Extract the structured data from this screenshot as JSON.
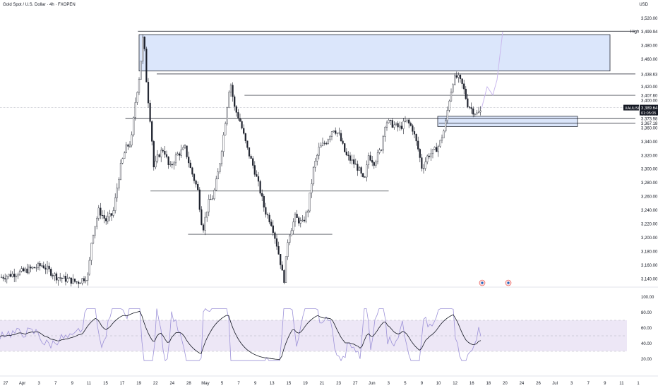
{
  "header": {
    "title": "Gold Spot / U.S. Dollar · 4h · FXOPEN",
    "currency": "USD"
  },
  "colors": {
    "up": "#26a69a",
    "candle": "#1e222d",
    "zone_fill": "#dbe6fb",
    "zone_stroke": "#1e222d",
    "projection": "#c9b8ee",
    "rsi_line": "#9d92d8",
    "rsi_ma": "#131722",
    "rsi_band": "#ede7f6",
    "rsi_fill": "#8bc78f"
  },
  "chart_data": {
    "type": "line",
    "price_axis": {
      "ticks": [
        "3,520.00",
        "3,500.00",
        "3,480.00",
        "3,460.00",
        "3,440.00",
        "3,420.00",
        "3,400.00",
        "3,380.00",
        "3,360.00",
        "3,340.00",
        "3,320.00",
        "3,300.00",
        "3,280.00",
        "3,260.00",
        "3,240.00",
        "3,220.00",
        "3,200.00",
        "3,180.00",
        "3,160.00",
        "3,140.00"
      ],
      "range": [
        3130,
        3528
      ]
    },
    "price_labels": {
      "high_text": "High",
      "high_value": "3,499.94",
      "level1": "3,438.63",
      "level2": "3,407.60",
      "symbol": "XAUUSD",
      "last": "3,389.64",
      "countdown": "01:05:05",
      "level3": "3,373.98",
      "level4": "3,367.18"
    },
    "rsi_axis": {
      "ticks": [
        "100.00",
        "80.00",
        "60.00",
        "40.00",
        "20.00"
      ],
      "range": [
        0,
        100
      ],
      "bands": [
        30,
        70
      ]
    },
    "time_axis": [
      "27",
      "Apr",
      "3",
      "7",
      "9",
      "11",
      "15",
      "17",
      "19",
      "22",
      "24",
      "28",
      "May",
      "5",
      "7",
      "9",
      "13",
      "15",
      "19",
      "21",
      "23",
      "27",
      "Jun",
      "3",
      "5",
      "9",
      "10",
      "12",
      "16",
      "18",
      "20",
      "24",
      "26",
      "Jul",
      "3",
      "7",
      "9",
      "11",
      "1"
    ],
    "horizontal_levels": [
      {
        "price": 3438.63,
        "x_start": 0.25
      },
      {
        "price": 3407.6,
        "x_start": 0.39
      },
      {
        "price": 3373.98,
        "x_start": 0.2
      },
      {
        "price": 3367.18,
        "x_start": 0.7
      },
      {
        "price": 3268,
        "x_start": 0.24,
        "x_end": 0.62
      },
      {
        "price": 3205,
        "x_start": 0.3,
        "x_end": 0.53
      },
      {
        "price": 3501,
        "x_start": 0.22
      }
    ],
    "zones": [
      {
        "top": 3496,
        "bottom": 3443
      },
      {
        "top": 3377,
        "bottom": 3362
      }
    ]
  }
}
